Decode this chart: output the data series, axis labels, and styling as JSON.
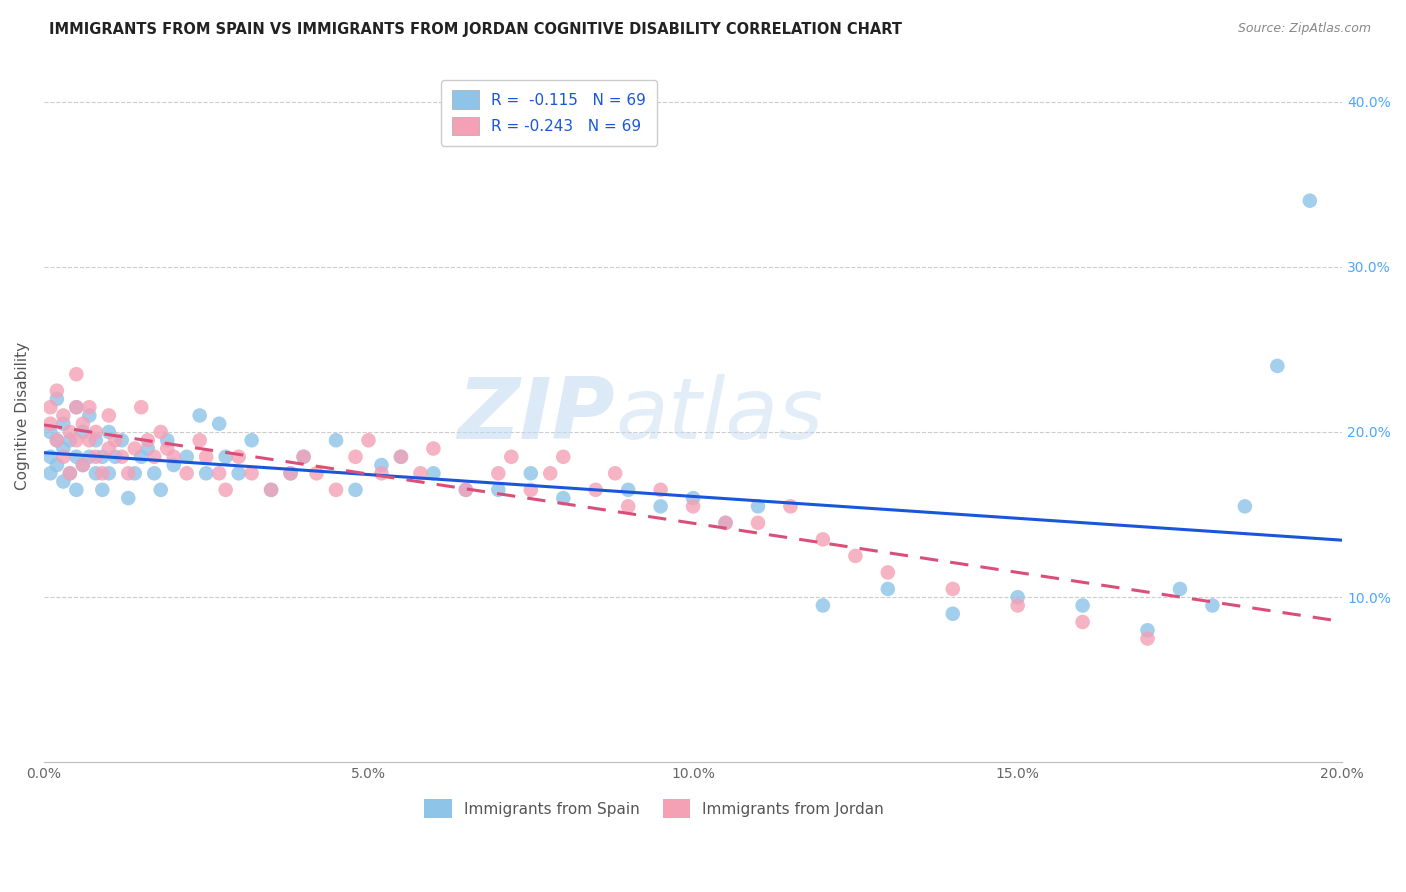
{
  "title": "IMMIGRANTS FROM SPAIN VS IMMIGRANTS FROM JORDAN COGNITIVE DISABILITY CORRELATION CHART",
  "source": "Source: ZipAtlas.com",
  "ylabel": "Cognitive Disability",
  "watermark_zip": "ZIP",
  "watermark_atlas": "atlas",
  "legend_spain": "Immigrants from Spain",
  "legend_jordan": "Immigrants from Jordan",
  "r_spain": -0.115,
  "r_jordan": -0.243,
  "n_spain": 69,
  "n_jordan": 69,
  "color_spain": "#8ec4e8",
  "color_jordan": "#f4a0b5",
  "line_spain": "#1a56db",
  "line_jordan": "#d94f7a",
  "background": "#ffffff",
  "grid_color": "#cccccc",
  "xlim": [
    0.0,
    0.2
  ],
  "ylim": [
    0.0,
    0.42
  ],
  "yticks": [
    0.1,
    0.2,
    0.3,
    0.4
  ],
  "xticks": [
    0.0,
    0.05,
    0.1,
    0.15,
    0.2
  ],
  "spain_x": [
    0.001,
    0.001,
    0.001,
    0.002,
    0.002,
    0.002,
    0.003,
    0.003,
    0.003,
    0.004,
    0.004,
    0.005,
    0.005,
    0.005,
    0.006,
    0.006,
    0.007,
    0.007,
    0.008,
    0.008,
    0.009,
    0.009,
    0.01,
    0.01,
    0.011,
    0.012,
    0.013,
    0.014,
    0.015,
    0.016,
    0.017,
    0.018,
    0.019,
    0.02,
    0.022,
    0.024,
    0.025,
    0.027,
    0.028,
    0.03,
    0.032,
    0.035,
    0.038,
    0.04,
    0.045,
    0.048,
    0.052,
    0.055,
    0.06,
    0.065,
    0.07,
    0.075,
    0.08,
    0.09,
    0.095,
    0.1,
    0.105,
    0.11,
    0.12,
    0.13,
    0.14,
    0.15,
    0.16,
    0.17,
    0.175,
    0.18,
    0.185,
    0.19,
    0.195
  ],
  "spain_y": [
    0.2,
    0.185,
    0.175,
    0.22,
    0.195,
    0.18,
    0.19,
    0.17,
    0.205,
    0.195,
    0.175,
    0.215,
    0.185,
    0.165,
    0.2,
    0.18,
    0.185,
    0.21,
    0.175,
    0.195,
    0.165,
    0.185,
    0.2,
    0.175,
    0.185,
    0.195,
    0.16,
    0.175,
    0.185,
    0.19,
    0.175,
    0.165,
    0.195,
    0.18,
    0.185,
    0.21,
    0.175,
    0.205,
    0.185,
    0.175,
    0.195,
    0.165,
    0.175,
    0.185,
    0.195,
    0.165,
    0.18,
    0.185,
    0.175,
    0.165,
    0.165,
    0.175,
    0.16,
    0.165,
    0.155,
    0.16,
    0.145,
    0.155,
    0.095,
    0.105,
    0.09,
    0.1,
    0.095,
    0.08,
    0.105,
    0.095,
    0.155,
    0.24,
    0.34
  ],
  "jordan_x": [
    0.001,
    0.001,
    0.002,
    0.002,
    0.003,
    0.003,
    0.004,
    0.004,
    0.005,
    0.005,
    0.005,
    0.006,
    0.006,
    0.007,
    0.007,
    0.008,
    0.008,
    0.009,
    0.01,
    0.01,
    0.011,
    0.012,
    0.013,
    0.014,
    0.015,
    0.016,
    0.017,
    0.018,
    0.019,
    0.02,
    0.022,
    0.024,
    0.025,
    0.027,
    0.028,
    0.03,
    0.032,
    0.035,
    0.038,
    0.04,
    0.042,
    0.045,
    0.048,
    0.05,
    0.052,
    0.055,
    0.058,
    0.06,
    0.065,
    0.07,
    0.072,
    0.075,
    0.078,
    0.08,
    0.085,
    0.088,
    0.09,
    0.095,
    0.1,
    0.105,
    0.11,
    0.115,
    0.12,
    0.125,
    0.13,
    0.14,
    0.15,
    0.16,
    0.17
  ],
  "jordan_y": [
    0.205,
    0.215,
    0.195,
    0.225,
    0.21,
    0.185,
    0.2,
    0.175,
    0.215,
    0.195,
    0.235,
    0.205,
    0.18,
    0.195,
    0.215,
    0.185,
    0.2,
    0.175,
    0.21,
    0.19,
    0.195,
    0.185,
    0.175,
    0.19,
    0.215,
    0.195,
    0.185,
    0.2,
    0.19,
    0.185,
    0.175,
    0.195,
    0.185,
    0.175,
    0.165,
    0.185,
    0.175,
    0.165,
    0.175,
    0.185,
    0.175,
    0.165,
    0.185,
    0.195,
    0.175,
    0.185,
    0.175,
    0.19,
    0.165,
    0.175,
    0.185,
    0.165,
    0.175,
    0.185,
    0.165,
    0.175,
    0.155,
    0.165,
    0.155,
    0.145,
    0.145,
    0.155,
    0.135,
    0.125,
    0.115,
    0.105,
    0.095,
    0.085,
    0.075
  ]
}
